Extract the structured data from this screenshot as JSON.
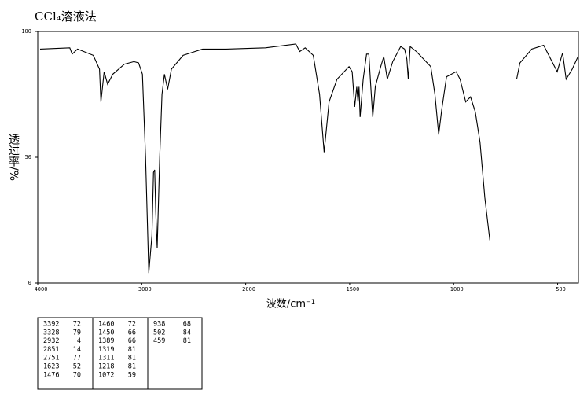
{
  "chart_data": {
    "type": "line",
    "title": "CCl₄溶液法",
    "x_label": "波数/cm⁻¹",
    "y_label": "透过率/%",
    "xlim": [
      4000,
      400
    ],
    "xscale_break": 2000,
    "ylim": [
      0,
      100
    ],
    "xticks": [
      4000,
      3000,
      2000,
      1500,
      1000,
      500
    ],
    "yticks": [
      0,
      50,
      100
    ],
    "series": [
      {
        "color": "#000000",
        "x": [
          3977,
          3692,
          3669,
          3617,
          3466,
          3406,
          3392,
          3361,
          3328,
          3278,
          3166,
          3075,
          3030,
          2993,
          2963,
          2932,
          2902,
          2887,
          2875,
          2865,
          2851,
          2827,
          2805,
          2782,
          2751,
          2714,
          2602,
          2414,
          2188,
          1905,
          1759,
          1740,
          1714,
          1675,
          1645,
          1623,
          1599,
          1561,
          1503,
          1488,
          1476,
          1466,
          1460,
          1455,
          1450,
          1435,
          1419,
          1408,
          1396,
          1389,
          1377,
          1351,
          1336,
          1319,
          1293,
          1255,
          1236,
          1225,
          1218,
          1209,
          1179,
          1110,
          1090,
          1072,
          1057,
          1034,
          988,
          969,
          942,
          919,
          896,
          873,
          850,
          826,
          null,
          697,
          681,
          624,
          567,
          502,
          476,
          459,
          430,
          402
        ],
        "values": [
          93,
          93.5,
          91,
          93,
          90.5,
          85,
          72,
          84,
          79,
          83,
          87,
          88,
          87.5,
          83,
          50,
          4,
          19,
          44,
          45,
          28,
          14,
          50,
          75,
          83,
          77,
          85,
          90.5,
          93,
          93,
          93.5,
          95,
          92,
          93.5,
          90.5,
          75,
          52,
          72,
          81,
          86,
          84,
          70,
          78,
          72,
          78,
          66,
          81,
          91,
          91,
          75,
          66,
          78,
          86,
          90,
          81,
          88,
          94,
          93,
          89,
          81,
          94,
          92,
          86,
          75,
          59,
          69,
          82,
          84,
          81,
          72,
          74,
          68,
          56,
          34,
          17,
          null,
          81,
          87.5,
          93,
          94.5,
          84,
          91.5,
          81,
          85,
          90
        ]
      }
    ]
  },
  "peak_table": {
    "columns": [
      [
        [
          "3392",
          "72"
        ],
        [
          "3328",
          "79"
        ],
        [
          "2932",
          "4"
        ],
        [
          "2851",
          "14"
        ],
        [
          "2751",
          "77"
        ],
        [
          "1623",
          "52"
        ],
        [
          "1476",
          "70"
        ]
      ],
      [
        [
          "1460",
          "72"
        ],
        [
          "1450",
          "66"
        ],
        [
          "1389",
          "66"
        ],
        [
          "1319",
          "81"
        ],
        [
          "1311",
          "81"
        ],
        [
          "1218",
          "81"
        ],
        [
          "1072",
          "59"
        ]
      ],
      [
        [
          "938",
          "68"
        ],
        [
          "502",
          "84"
        ],
        [
          "459",
          "81"
        ]
      ]
    ]
  }
}
